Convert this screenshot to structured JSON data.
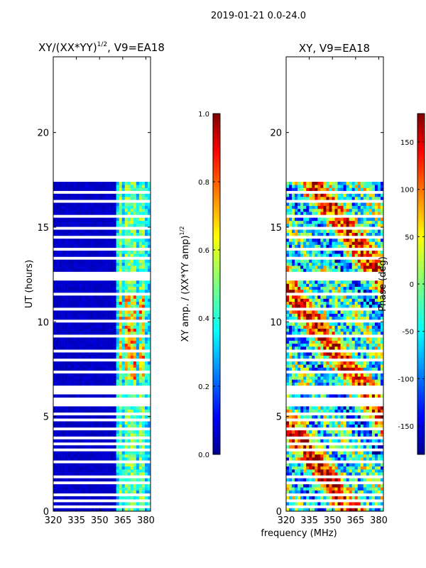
{
  "chart_data": {
    "suptitle": "2019-01-21 0.0-24.0",
    "xlabel": "frequency (MHz)",
    "panels": [
      {
        "id": "amp",
        "type": "heatmap",
        "title": "XY/(XX*YY)",
        "title_exponent": "1/2",
        "title_suffix": ", V9=EA18",
        "ylabel": "UT (hours)",
        "xlim": [
          320,
          383
        ],
        "ylim": [
          0,
          24
        ],
        "xticks": [
          320,
          335,
          350,
          365,
          380
        ],
        "yticks": [
          0,
          5,
          10,
          15,
          20
        ],
        "data_extent_hours": [
          0,
          17.4
        ],
        "gap_rows_hours": [
          0.25,
          0.55,
          0.9,
          1.5,
          1.8,
          2.6,
          3.3,
          3.6,
          3.9,
          4.3,
          4.8,
          5.1,
          5.65,
          5.8,
          6.0,
          6.2,
          6.35,
          6.55,
          7.4,
          8.0,
          8.5,
          9.2,
          10.1,
          10.6,
          11.5,
          12.2,
          12.45,
          12.6,
          13.3,
          13.9,
          14.5,
          14.9,
          15.6,
          16.3,
          16.8
        ],
        "bright_channels_mhz": [
          [
            362,
            365
          ],
          [
            366,
            368
          ],
          [
            369,
            371
          ],
          [
            372,
            374
          ],
          [
            376,
            379
          ]
        ],
        "colorbar": {
          "label": "XY amp. / (XX*YY amp)",
          "label_exponent": "1/2",
          "range": [
            0.0,
            1.0
          ],
          "ticks": [
            "0.0",
            "0.2",
            "0.4",
            "0.6",
            "0.8",
            "1.0"
          ],
          "colormap": "jet"
        }
      },
      {
        "id": "phase",
        "type": "heatmap",
        "title": "XY, V9=EA18",
        "xlim": [
          320,
          383
        ],
        "ylim": [
          0,
          24
        ],
        "xticks": [
          320,
          335,
          350,
          365,
          380
        ],
        "yticks": [
          0,
          5,
          10,
          15,
          20
        ],
        "data_extent_hours": [
          0,
          17.4
        ],
        "colorbar": {
          "label": "Phase (deg)",
          "range": [
            -180,
            180
          ],
          "ticks": [
            "-150",
            "-100",
            "-50",
            "0",
            "50",
            "100",
            "150"
          ],
          "colormap": "jet"
        }
      }
    ]
  }
}
